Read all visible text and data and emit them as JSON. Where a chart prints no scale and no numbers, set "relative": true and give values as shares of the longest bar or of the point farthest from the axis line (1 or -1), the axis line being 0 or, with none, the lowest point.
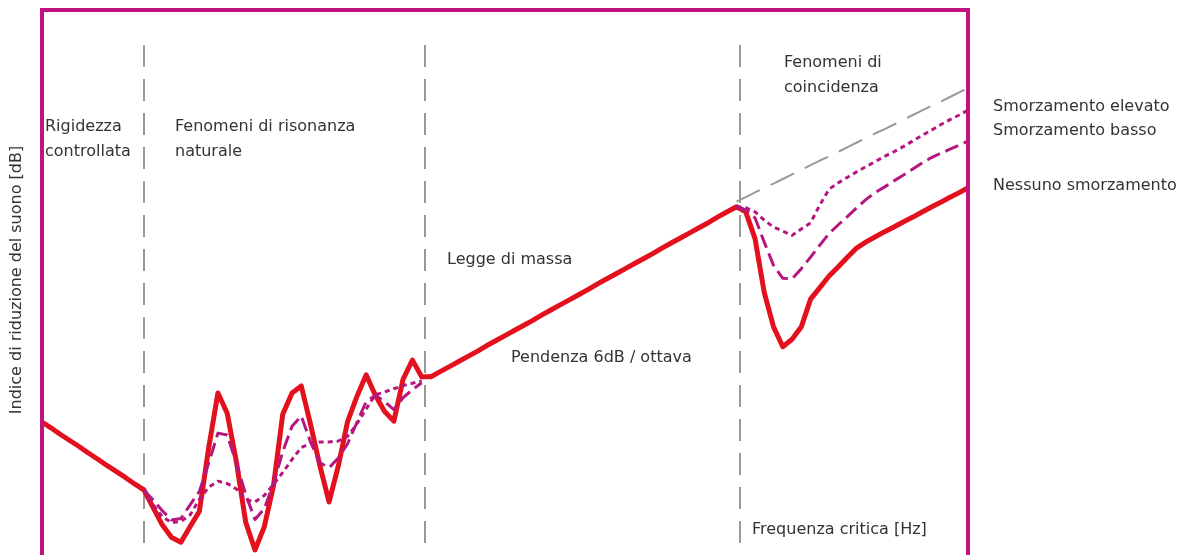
{
  "chart_data": {
    "type": "line",
    "relative": true,
    "ylabel": "Indice di riduzione del suono [dB]",
    "legend": false,
    "categories": [
      null,
      null,
      null,
      null,
      null,
      null,
      null,
      null,
      null,
      null,
      null,
      null,
      null,
      null,
      null,
      null,
      null,
      null,
      null,
      null,
      null,
      null,
      null,
      null,
      null,
      null,
      null,
      null,
      null,
      null,
      null,
      null,
      null,
      null,
      null,
      null,
      null,
      null,
      null,
      null,
      null,
      null,
      null,
      null,
      null,
      null,
      null,
      null,
      null,
      null,
      null,
      null,
      null,
      null,
      null,
      null,
      null,
      null,
      null,
      null,
      null,
      null,
      null,
      null,
      null,
      null,
      null,
      null,
      null,
      null,
      null,
      null,
      null,
      null,
      null,
      null,
      null,
      null,
      null,
      null,
      null,
      null,
      null,
      null,
      null,
      null,
      null,
      null,
      null,
      null,
      null,
      null,
      null,
      null,
      null,
      null,
      null,
      null,
      null,
      null,
      null
    ],
    "annotations": [
      "Rigidezza\ncontrollata",
      "Fenomeni di risonanza\nnaturale",
      "Legge di massa",
      "Pendenza 6dB / ottava",
      "Fenomeni di\ncoincidenza",
      "Frequenza critica [Hz]"
    ],
    "series": [
      {
        "name": "Smorzamento elevato",
        "color": "#b5177f",
        "line_style": "dotted",
        "values": [
          null,
          null,
          null,
          null,
          null,
          null,
          null,
          null,
          null,
          null,
          null,
          0.13,
          0.098,
          0.072,
          0.059,
          0.062,
          0.076,
          0.11,
          0.136,
          0.149,
          0.144,
          0.132,
          0.109,
          0.104,
          0.118,
          0.142,
          0.168,
          0.196,
          0.222,
          0.23,
          0.234,
          0.234,
          0.236,
          0.246,
          0.273,
          0.305,
          0.336,
          0.342,
          0.349,
          0.356,
          0.361,
          0.366,
          null,
          null,
          null,
          null,
          null,
          null,
          null,
          null,
          null,
          null,
          null,
          null,
          null,
          null,
          null,
          null,
          null,
          null,
          null,
          null,
          null,
          null,
          null,
          null,
          null,
          null,
          null,
          null,
          null,
          null,
          null,
          null,
          null,
          0.743,
          0.741,
          0.732,
          0.714,
          0.699,
          0.69,
          0.681,
          0.695,
          0.708,
          0.747,
          0.781,
          0.795,
          0.807,
          0.819,
          0.83,
          0.841,
          0.852,
          0.862,
          0.873,
          0.885,
          0.897,
          0.908,
          0.92,
          0.931,
          0.941,
          0.952
        ]
      },
      {
        "name": "Smorzamento basso",
        "color": "#b5177f",
        "line_style": "dashed",
        "values": [
          null,
          null,
          null,
          null,
          null,
          null,
          null,
          null,
          null,
          null,
          null,
          0.13,
          0.108,
          0.085,
          0.065,
          0.068,
          0.098,
          0.127,
          0.188,
          0.253,
          0.249,
          0.187,
          0.12,
          0.066,
          0.089,
          0.144,
          0.213,
          0.268,
          0.29,
          0.234,
          0.189,
          0.178,
          0.199,
          0.23,
          0.276,
          0.321,
          0.335,
          0.321,
          0.304,
          0.33,
          0.347,
          0.362,
          null,
          null,
          null,
          null,
          null,
          null,
          null,
          null,
          null,
          null,
          null,
          null,
          null,
          null,
          null,
          null,
          null,
          null,
          null,
          null,
          null,
          null,
          null,
          null,
          null,
          null,
          null,
          null,
          null,
          null,
          null,
          null,
          null,
          0.743,
          0.736,
          0.719,
          0.666,
          0.616,
          0.588,
          0.587,
          0.609,
          0.634,
          0.66,
          0.685,
          0.704,
          0.722,
          0.741,
          0.759,
          0.774,
          0.786,
          0.799,
          0.811,
          0.824,
          0.837,
          0.849,
          0.858,
          0.867,
          0.876,
          0.885
        ]
      },
      {
        "name": "Nessuno smorzamento",
        "color": "#e3101e",
        "line_style": "solid",
        "values": [
          0.277,
          0.264,
          0.25,
          0.237,
          0.224,
          0.21,
          0.197,
          0.183,
          0.17,
          0.157,
          0.143,
          0.13,
          0.092,
          0.054,
          0.027,
          0.017,
          0.051,
          0.084,
          0.221,
          0.34,
          0.296,
          0.19,
          0.06,
          0,
          0.05,
          0.139,
          0.294,
          0.34,
          0.355,
          0.272,
          0.183,
          0.104,
          0.182,
          0.278,
          0.332,
          0.379,
          0.335,
          0.3,
          0.279,
          0.37,
          0.411,
          0.375,
          0.375,
          0.386,
          0.397,
          0.408,
          0.419,
          0.43,
          0.442,
          0.453,
          0.464,
          0.475,
          0.486,
          0.497,
          0.509,
          0.52,
          0.531,
          0.542,
          0.553,
          0.564,
          0.576,
          0.587,
          0.598,
          0.609,
          0.62,
          0.631,
          0.642,
          0.654,
          0.665,
          0.676,
          0.687,
          0.698,
          0.709,
          0.721,
          0.732,
          0.743,
          0.732,
          0.674,
          0.557,
          0.483,
          0.44,
          0.456,
          0.483,
          0.543,
          0.568,
          0.593,
          0.613,
          0.634,
          0.654,
          0.667,
          0.678,
          0.689,
          0.699,
          0.71,
          0.72,
          0.731,
          0.742,
          0.752,
          0.763,
          0.773,
          0.784
        ]
      },
      {
        "color": "#999999",
        "line_style": "dashed",
        "values": [
          null,
          null,
          null,
          null,
          null,
          null,
          null,
          null,
          null,
          null,
          null,
          null,
          null,
          null,
          null,
          null,
          null,
          null,
          null,
          null,
          null,
          null,
          null,
          null,
          null,
          null,
          null,
          null,
          null,
          null,
          null,
          null,
          null,
          null,
          null,
          null,
          null,
          null,
          null,
          null,
          null,
          null,
          null,
          null,
          null,
          null,
          null,
          null,
          null,
          null,
          null,
          null,
          null,
          null,
          null,
          null,
          null,
          null,
          null,
          null,
          null,
          null,
          null,
          null,
          null,
          null,
          null,
          null,
          null,
          null,
          null,
          null,
          null,
          null,
          null,
          0.754,
          0.764,
          0.774,
          0.784,
          0.793,
          0.803,
          0.813,
          0.823,
          0.833,
          0.843,
          0.852,
          0.862,
          0.872,
          0.882,
          0.892,
          0.902,
          0.911,
          0.921,
          0.931,
          0.941,
          0.951,
          0.961,
          0.97,
          0.98,
          0.99,
          1
        ]
      }
    ]
  }
}
